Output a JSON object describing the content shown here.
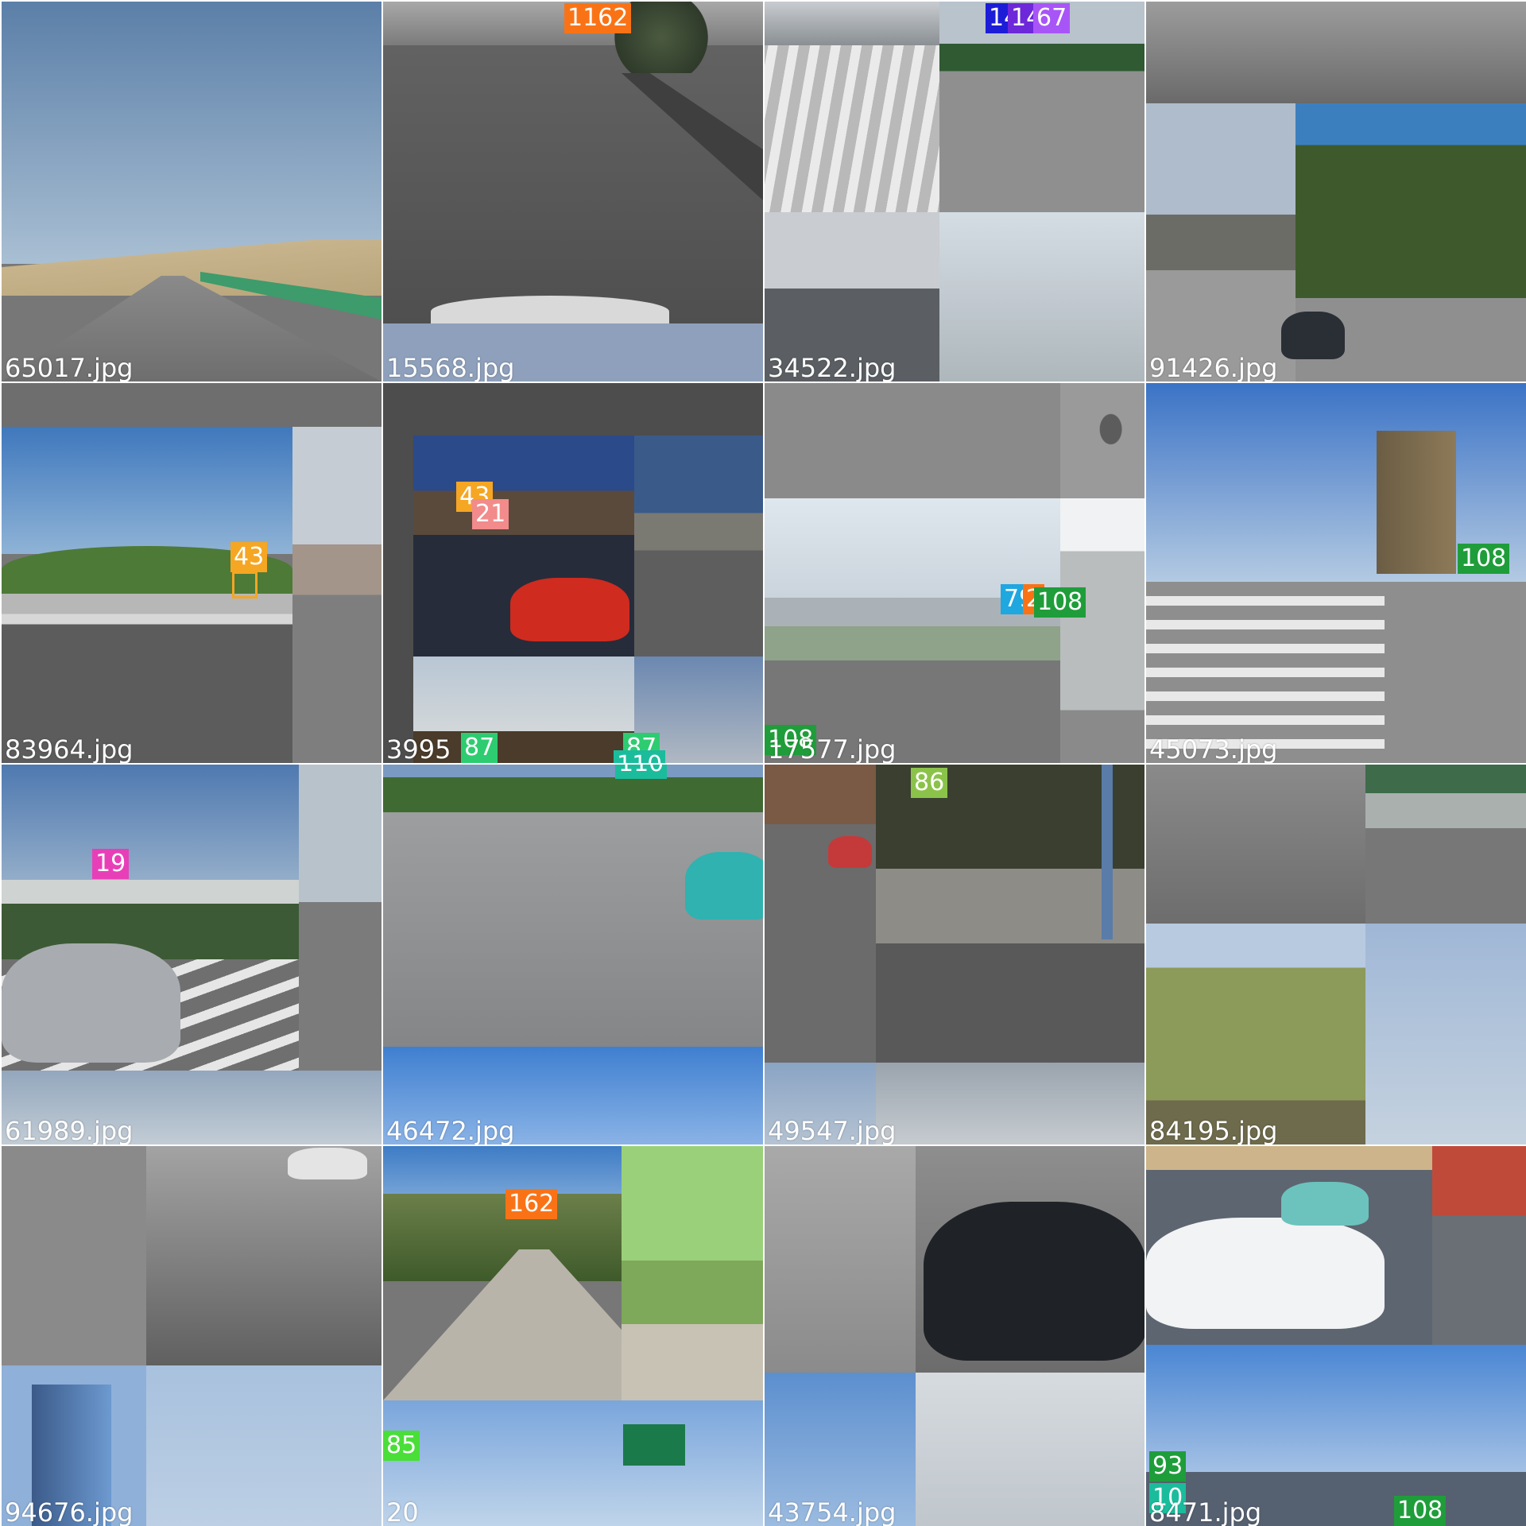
{
  "grid": {
    "columns": 4,
    "rows": 4,
    "tiles": [
      {
        "caption": "65017.jpg",
        "scene": "desert-highway",
        "labels": []
      },
      {
        "caption": "15568.jpg",
        "scene": "city-road-trees",
        "labels": [
          {
            "text": "1162",
            "color": "#f97316"
          }
        ]
      },
      {
        "caption": "34522.jpg",
        "scene": "crosswalk-and-buildings",
        "labels": [
          {
            "text": "14",
            "color": "#1d1dd8"
          },
          {
            "text": "14",
            "color": "#6d28d9"
          },
          {
            "text": "67",
            "color": "#a855f7"
          }
        ]
      },
      {
        "caption": "91426.jpg",
        "scene": "trees-and-apartments",
        "labels": []
      },
      {
        "caption": "83964.jpg",
        "scene": "mountain-expressway",
        "labels": [
          {
            "text": "43",
            "color": "#f5a623"
          }
        ]
      },
      {
        "caption": "3995",
        "scene": "plaza-red-car",
        "labels": [
          {
            "text": "43",
            "color": "#f5a623"
          },
          {
            "text": "21",
            "color": "#f28b8b"
          },
          {
            "text": "87",
            "color": "#2ecc71"
          },
          {
            "text": "87",
            "color": "#2ecc71"
          },
          {
            "text": "110",
            "color": "#1abc9c"
          }
        ]
      },
      {
        "caption": "17577.jpg",
        "scene": "pedestrian-bridge",
        "labels": [
          {
            "text": "79",
            "color": "#1fa7e0"
          },
          {
            "text": "2",
            "color": "#f97316"
          },
          {
            "text": "108",
            "color": "#1f9d3a"
          },
          {
            "text": "108",
            "color": "#1f9d3a"
          }
        ]
      },
      {
        "caption": "45073.jpg",
        "scene": "construction-crosswalk",
        "labels": [
          {
            "text": "108",
            "color": "#1f9d3a"
          }
        ]
      },
      {
        "caption": "61989.jpg",
        "scene": "silver-suv",
        "labels": [
          {
            "text": "19",
            "color": "#e83fb8"
          }
        ]
      },
      {
        "caption": "46472.jpg",
        "scene": "avenue-taxi",
        "labels": [
          {
            "text": "110",
            "color": "#1abc9c"
          }
        ]
      },
      {
        "caption": "49547.jpg",
        "scene": "sidewalk-fence",
        "labels": [
          {
            "text": "86",
            "color": "#8bc34a"
          }
        ]
      },
      {
        "caption": "84195.jpg",
        "scene": "willow-trees",
        "labels": []
      },
      {
        "caption": "94676.jpg",
        "scene": "glass-tower",
        "labels": []
      },
      {
        "caption": "20",
        "scene": "tree-lined-road",
        "labels": [
          {
            "text": "162",
            "color": "#f97316"
          },
          {
            "text": "85",
            "color": "#4ade39"
          }
        ]
      },
      {
        "caption": "43754.jpg",
        "scene": "black-sedan",
        "labels": []
      },
      {
        "caption": "8471.jpg",
        "scene": "intersection-taxi",
        "labels": [
          {
            "text": "93",
            "color": "#1f9d3a"
          },
          {
            "text": "10",
            "color": "#1abc9c"
          },
          {
            "text": "108",
            "color": "#1f9d3a"
          }
        ]
      }
    ]
  }
}
